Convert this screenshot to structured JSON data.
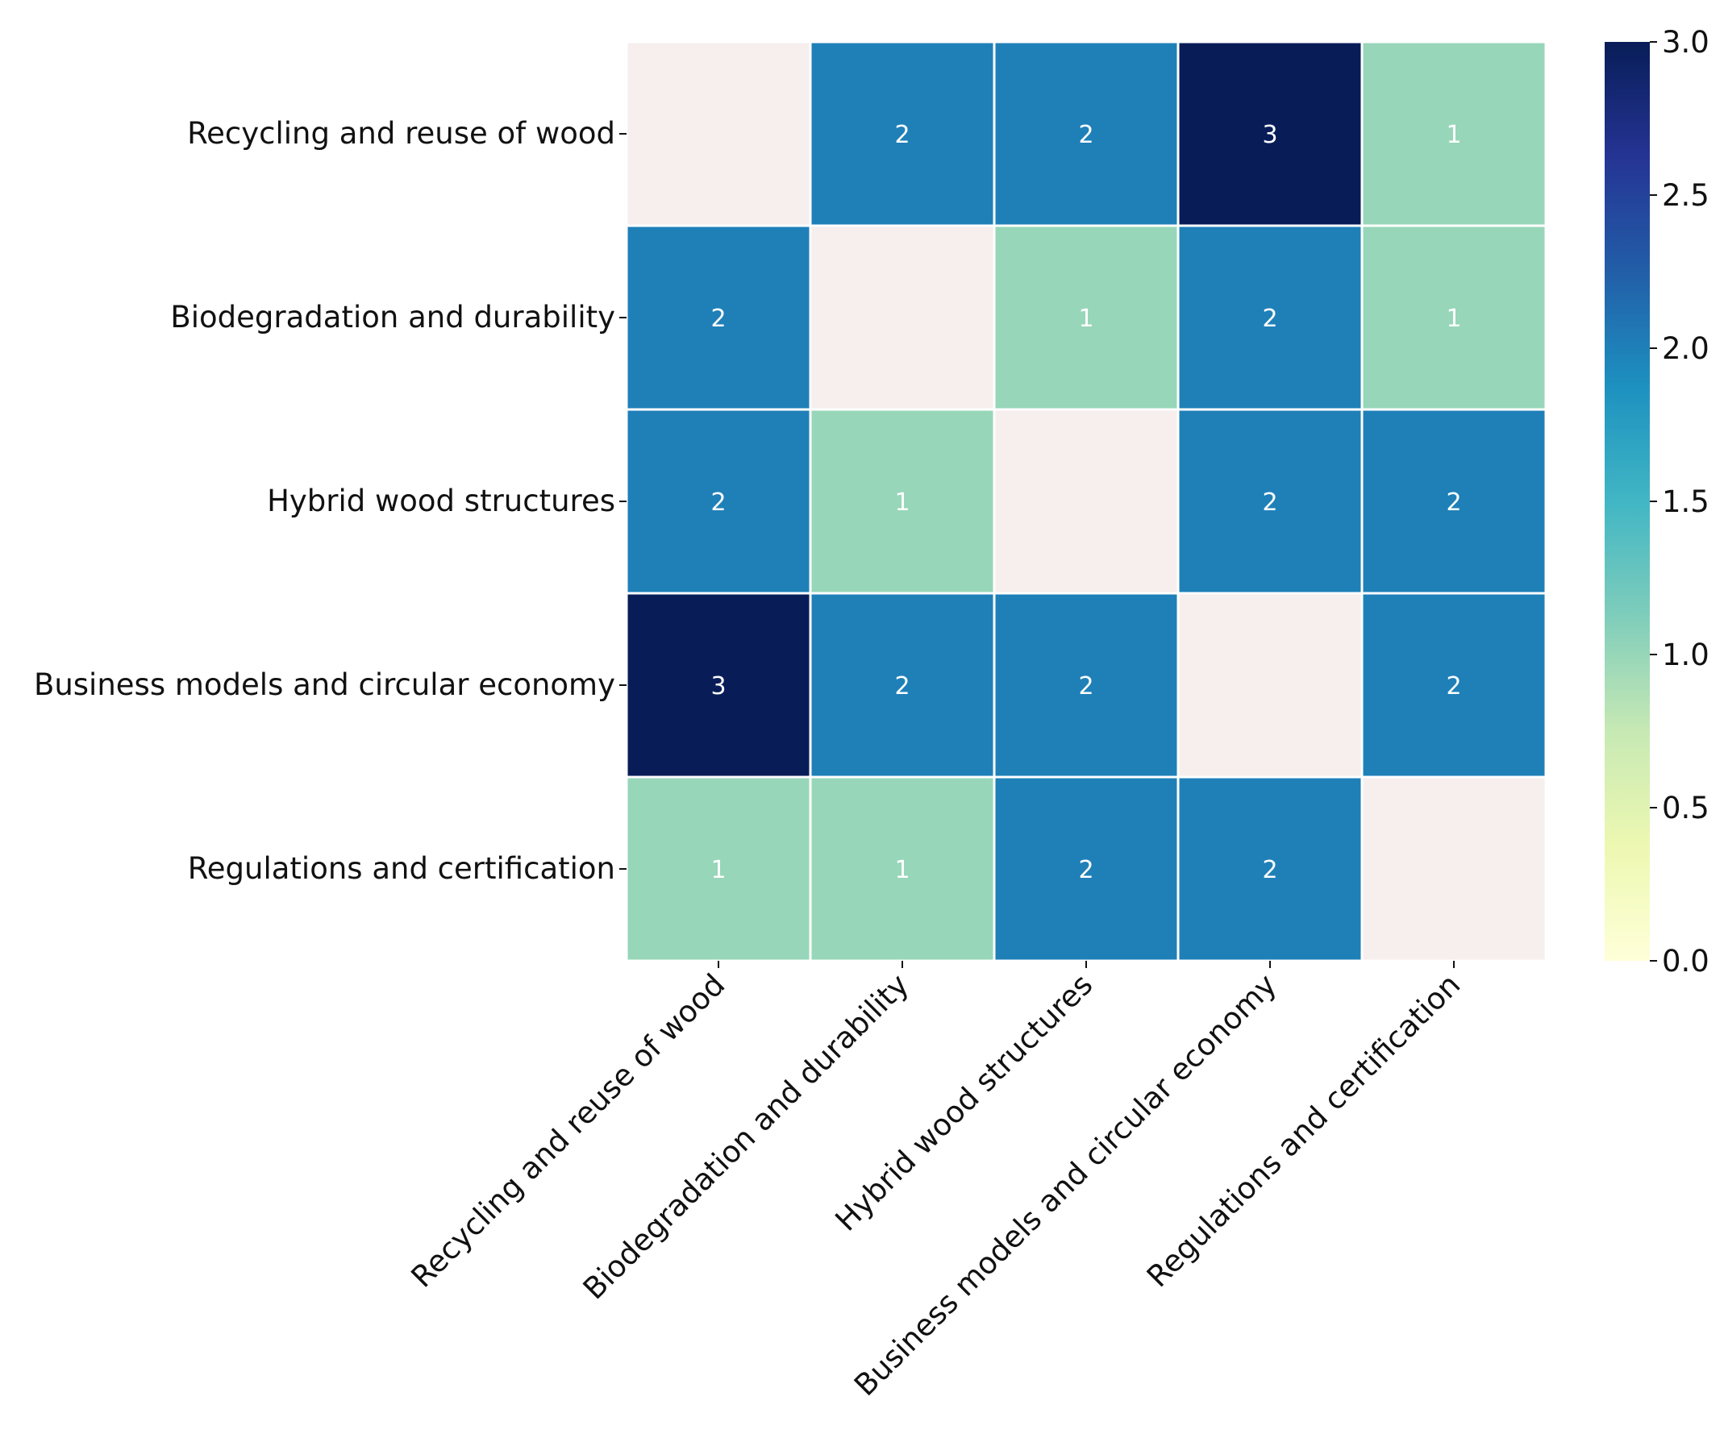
{
  "chart_data": {
    "type": "heatmap",
    "title": "",
    "xlabel": "",
    "ylabel": "",
    "row_labels": [
      "Recycling and reuse of wood",
      "Biodegradation and durability",
      "Hybrid wood structures",
      "Business models and circular economy",
      "Regulations and certification"
    ],
    "col_labels": [
      "Recycling and reuse of wood",
      "Biodegradation and durability",
      "Hybrid wood structures",
      "Business models and circular economy",
      "Regulations and certification"
    ],
    "values": [
      [
        null,
        2,
        2,
        3,
        1
      ],
      [
        2,
        null,
        1,
        2,
        1
      ],
      [
        2,
        1,
        null,
        2,
        2
      ],
      [
        3,
        2,
        2,
        null,
        2
      ],
      [
        1,
        1,
        2,
        2,
        null
      ]
    ],
    "value_labels": [
      [
        "",
        "2",
        "2",
        "3",
        "1"
      ],
      [
        "2",
        "",
        "1",
        "2",
        "1"
      ],
      [
        "2",
        "1",
        "",
        "2",
        "2"
      ],
      [
        "3",
        "2",
        "2",
        "",
        "2"
      ],
      [
        "1",
        "1",
        "2",
        "2",
        ""
      ]
    ],
    "colorbar": {
      "colormap": "YlGnBu",
      "range": [
        0.0,
        3.0
      ],
      "tick_values": [
        0.0,
        0.5,
        1.0,
        1.5,
        2.0,
        2.5,
        3.0
      ],
      "tick_labels": [
        "0.0",
        "0.5",
        "1.0",
        "1.5",
        "2.0",
        "2.5",
        "3.0"
      ]
    },
    "colors": {
      "empty_cell": "#f7eeee",
      "cell_border": "#ffffff",
      "annotation_text": "#ffffff",
      "axis_text": "#111111",
      "cmap_stops": [
        "#ffffd9",
        "#edf8b1",
        "#c7e9b4",
        "#7fcdbb",
        "#41b6c4",
        "#1d91c0",
        "#225ea8",
        "#253494",
        "#081d58"
      ]
    }
  }
}
